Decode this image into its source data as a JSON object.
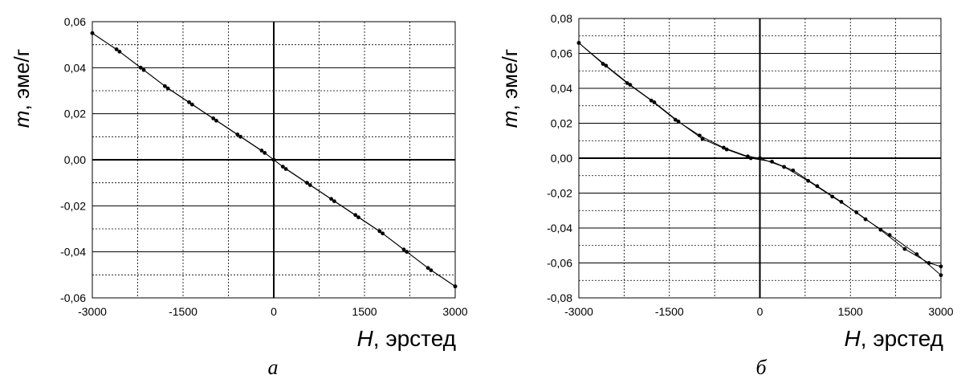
{
  "charts": [
    {
      "id": "a",
      "panel_label": "а",
      "y_unit": "эме/г",
      "y_var": "m",
      "x_unit": "эрстед",
      "x_var": "H",
      "y_ticks": [
        "0,06",
        "0,04",
        "0,02",
        "0,00",
        "-0,02",
        "-0,04",
        "-0,06"
      ],
      "x_ticks": [
        "-3000",
        "-1500",
        "0",
        "1500",
        "3000"
      ]
    },
    {
      "id": "b",
      "panel_label": "б",
      "y_unit": "эме/г",
      "y_var": "m",
      "x_unit": "эрстед",
      "x_var": "H",
      "y_ticks": [
        "0,08",
        "0,06",
        "0,04",
        "0,02",
        "0,00",
        "-0,02",
        "-0,04",
        "-0,06",
        "-0,08"
      ],
      "x_ticks": [
        "-3000",
        "-1500",
        "0",
        "1500",
        "3000"
      ]
    }
  ],
  "chart_data": [
    {
      "type": "line",
      "title": "",
      "xlabel": "H, эрстед",
      "ylabel": "m, эме/г",
      "xlim": [
        -3000,
        3000
      ],
      "ylim": [
        -0.06,
        0.06
      ],
      "grid": true,
      "series": [
        {
          "x": [
            -3000,
            -2600,
            -2200,
            -1800,
            -1400,
            -1000,
            -600,
            -200,
            0,
            200,
            600,
            1000,
            1400,
            1800,
            2200,
            2600,
            3000
          ],
          "y": [
            0.055,
            0.048,
            0.04,
            0.032,
            0.025,
            0.018,
            0.011,
            0.004,
            0.0,
            -0.004,
            -0.011,
            -0.018,
            -0.025,
            -0.032,
            -0.04,
            -0.048,
            -0.055
          ]
        },
        {
          "x": [
            -3000,
            -2550,
            -2150,
            -1750,
            -1350,
            -950,
            -550,
            -150,
            150,
            550,
            950,
            1350,
            1750,
            2150,
            2550,
            3000
          ],
          "y": [
            0.055,
            0.047,
            0.039,
            0.031,
            0.024,
            0.017,
            0.01,
            0.003,
            -0.003,
            -0.01,
            -0.017,
            -0.024,
            -0.031,
            -0.039,
            -0.047,
            -0.055
          ]
        }
      ]
    },
    {
      "type": "line",
      "title": "",
      "xlabel": "H, эрстед",
      "ylabel": "m, эме/г",
      "xlim": [
        -3000,
        3000
      ],
      "ylim": [
        -0.08,
        0.08
      ],
      "grid": true,
      "series": [
        {
          "x": [
            -3000,
            -2600,
            -2200,
            -1800,
            -1400,
            -1000,
            -600,
            -200,
            0,
            400,
            800,
            1200,
            1600,
            2000,
            2400,
            2800,
            3000
          ],
          "y": [
            0.066,
            0.054,
            0.043,
            0.033,
            0.022,
            0.013,
            0.006,
            0.001,
            0.0,
            -0.005,
            -0.013,
            -0.022,
            -0.031,
            -0.041,
            -0.052,
            -0.06,
            -0.062
          ]
        },
        {
          "x": [
            -3000,
            -2550,
            -2150,
            -1750,
            -1350,
            -950,
            -550,
            -150,
            200,
            550,
            950,
            1350,
            1750,
            2150,
            2600,
            3000
          ],
          "y": [
            0.066,
            0.053,
            0.042,
            0.032,
            0.021,
            0.011,
            0.005,
            0.0,
            -0.002,
            -0.007,
            -0.016,
            -0.025,
            -0.035,
            -0.044,
            -0.055,
            -0.067
          ]
        }
      ]
    }
  ]
}
